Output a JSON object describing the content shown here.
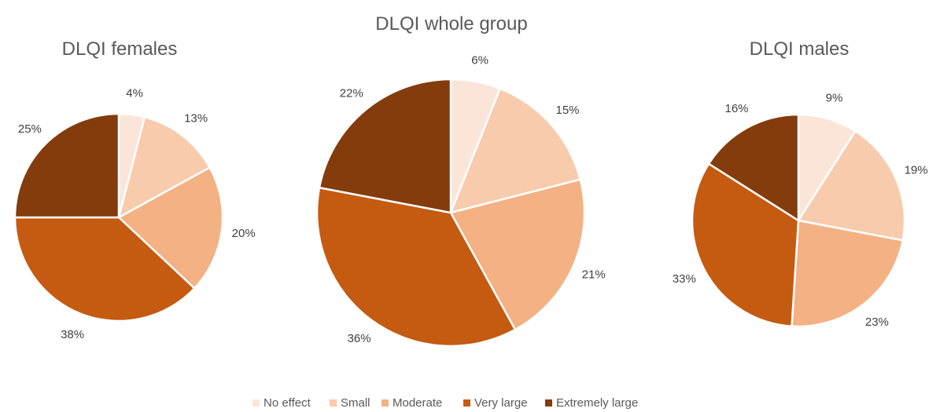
{
  "legend": [
    "No effect",
    "Small",
    "Moderate",
    "Very large",
    "Extremely large"
  ],
  "colors": [
    "#FBE5D9",
    "#F8CBAD",
    "#F4B183",
    "#C55A11",
    "#843C0C"
  ],
  "chart_data": [
    {
      "type": "pie",
      "title": "DLQI females",
      "categories": [
        "No effect",
        "Small",
        "Moderate",
        "Very large",
        "Extremely large"
      ],
      "values": [
        4,
        13,
        20,
        38,
        25
      ],
      "labels": [
        "4%",
        "13%",
        "20%",
        "38%",
        "25%"
      ]
    },
    {
      "type": "pie",
      "title": "DLQI whole group",
      "categories": [
        "No effect",
        "Small",
        "Moderate",
        "Very large",
        "Extremely large"
      ],
      "values": [
        6,
        15,
        21,
        36,
        22
      ],
      "labels": [
        "6%",
        "15%",
        "21%",
        "36%",
        "22%"
      ]
    },
    {
      "type": "pie",
      "title": "DLQI males",
      "categories": [
        "No effect",
        "Small",
        "Moderate",
        "Very large",
        "Extremely large"
      ],
      "values": [
        9,
        19,
        23,
        33,
        16
      ],
      "labels": [
        "9%",
        "19%",
        "23%",
        "33%",
        "16%"
      ]
    }
  ]
}
